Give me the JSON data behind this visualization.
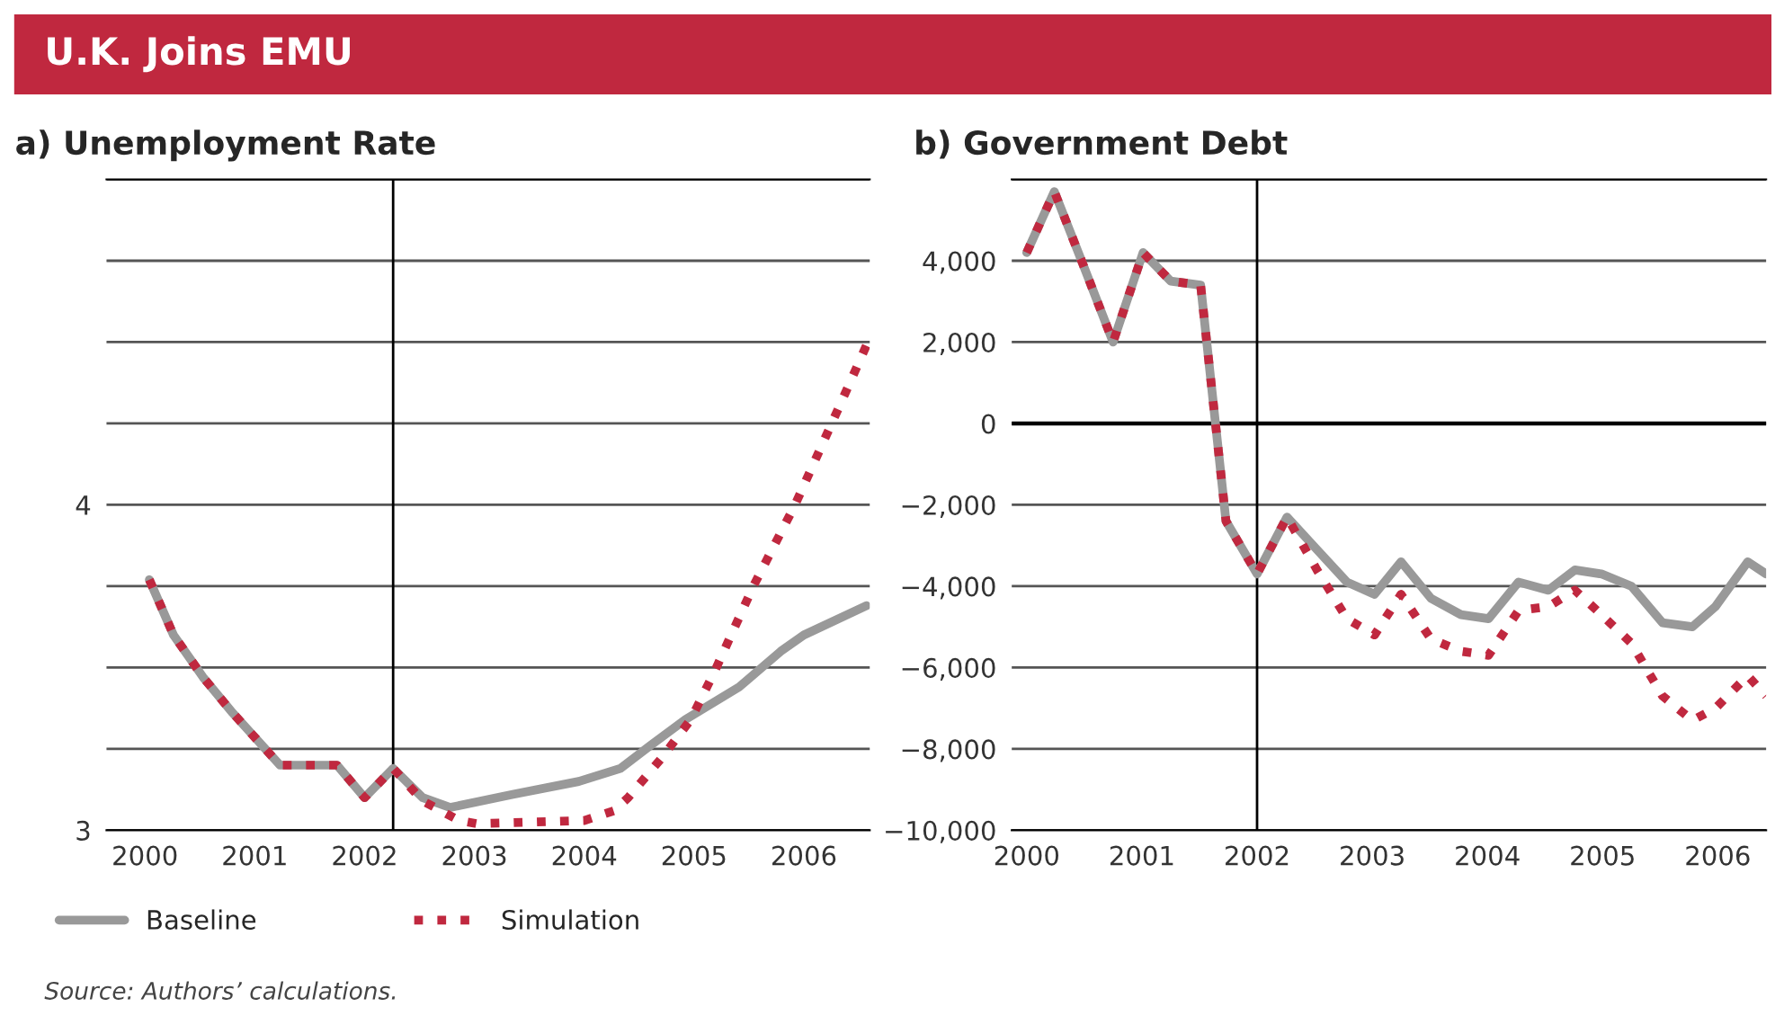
{
  "chart_data": [
    {
      "type": "line",
      "title": "a) Unemployment Rate",
      "xlim": [
        1999.65,
        2006.6
      ],
      "ylim": [
        3,
        5
      ],
      "xticks": [
        2000,
        2001,
        2002,
        2003,
        2004,
        2005,
        2006
      ],
      "yticks": [
        3,
        {
          "value": 3.25,
          "label": null
        },
        {
          "value": 3.5,
          "label": null
        },
        {
          "value": 3.75,
          "label": null
        },
        4,
        {
          "value": 4.25,
          "label": null
        },
        {
          "value": 4.5,
          "label": null
        },
        {
          "value": 4.75,
          "label": null
        },
        {
          "value": 5,
          "label": null
        }
      ],
      "grid": "y",
      "legend": "bottom",
      "ref_lines": [
        {
          "axis": "x",
          "value": 2002.26,
          "color": "#000000"
        }
      ],
      "series": [
        {
          "name": "Baseline",
          "color": "#999999",
          "line_style": "solid",
          "x": [
            2000.04,
            2000.26,
            2000.53,
            2000.8,
            2001.23,
            2001.75,
            2002.0,
            2002.26,
            2002.53,
            2002.78,
            2003.35,
            2003.95,
            2004.33,
            2004.6,
            2004.92,
            2005.41,
            2005.79,
            2006.0,
            2006.57
          ],
          "values": [
            3.77,
            3.6,
            3.47,
            3.36,
            3.2,
            3.2,
            3.1,
            3.19,
            3.1,
            3.07,
            3.11,
            3.15,
            3.19,
            3.26,
            3.34,
            3.44,
            3.55,
            3.6,
            3.69
          ]
        },
        {
          "name": "Simulation",
          "color": "#c0283f",
          "line_style": "dotted",
          "x": [
            2000.04,
            2000.26,
            2000.53,
            2000.8,
            2001.23,
            2001.75,
            2002.0,
            2002.26,
            2002.53,
            2002.86,
            2003.02,
            2004.0,
            2004.27,
            2004.4,
            2004.7,
            2004.97,
            2005.19,
            2005.54,
            2005.92,
            2006.32,
            2006.57
          ],
          "values": [
            3.77,
            3.6,
            3.47,
            3.36,
            3.2,
            3.2,
            3.1,
            3.19,
            3.09,
            3.03,
            3.02,
            3.03,
            3.06,
            3.1,
            3.22,
            3.34,
            3.49,
            3.75,
            4.0,
            4.3,
            4.49
          ]
        }
      ]
    },
    {
      "type": "line",
      "title": "b) Government Debt",
      "xlim": [
        1999.87,
        2006.42
      ],
      "ylim": [
        -10000,
        6000
      ],
      "xticks": [
        2000,
        2001,
        2002,
        2003,
        2004,
        2005,
        2006
      ],
      "yticks": [
        {
          "value": -10000,
          "label": "−10,000"
        },
        {
          "value": -8000,
          "label": "−8,000"
        },
        {
          "value": -6000,
          "label": "−6,000"
        },
        {
          "value": -4000,
          "label": "−4,000"
        },
        {
          "value": -2000,
          "label": "−2,000"
        },
        0,
        {
          "value": 2000,
          "label": "2,000"
        },
        {
          "value": 4000,
          "label": "4,000"
        },
        {
          "value": 6000,
          "label": null
        }
      ],
      "grid": "y",
      "ref_lines": [
        {
          "axis": "x",
          "value": 2002.0,
          "color": "#000000"
        },
        {
          "axis": "y",
          "value": 0,
          "color": "#000000"
        }
      ],
      "series": [
        {
          "color": "#999999",
          "line_style": "solid",
          "x": [
            2000,
            2000.24,
            2000.49,
            2000.75,
            2001.01,
            2001.25,
            2001.51,
            2001.73,
            2002.0,
            2002.26,
            2002.52,
            2002.78,
            2003.02,
            2003.25,
            2003.51,
            2003.77,
            2004.01,
            2004.27,
            2004.53,
            2004.76,
            2004.99,
            2005.25,
            2005.52,
            2005.78,
            2005.98,
            2006.26,
            2006.42
          ],
          "values": [
            4200,
            5700,
            3900,
            2000,
            4200,
            3500,
            3400,
            -2400,
            -3700,
            -2300,
            -3100,
            -3900,
            -4200,
            -3400,
            -4300,
            -4700,
            -4800,
            -3900,
            -4100,
            -3600,
            -3700,
            -4000,
            -4900,
            -5000,
            -4500,
            -3400,
            -3700
          ]
        },
        {
          "color": "#c0283f",
          "line_style": "dotted",
          "x": [
            2000,
            2000.24,
            2000.49,
            2000.75,
            2001.01,
            2001.25,
            2001.51,
            2001.73,
            2002.0,
            2002.26,
            2002.52,
            2002.78,
            2003.02,
            2003.25,
            2003.51,
            2003.77,
            2004.01,
            2004.27,
            2004.53,
            2004.76,
            2004.99,
            2005.25,
            2005.52,
            2005.78,
            2005.98,
            2006.26,
            2006.42
          ],
          "values": [
            4200,
            5700,
            3900,
            2000,
            4200,
            3500,
            3400,
            -2400,
            -3700,
            -2300,
            -3600,
            -4800,
            -5200,
            -4200,
            -5300,
            -5600,
            -5700,
            -4600,
            -4500,
            -4100,
            -4700,
            -5400,
            -6700,
            -7300,
            -7000,
            -6200,
            -6700
          ]
        }
      ]
    },
    {
      "type": "other",
      "title": "U.K. Joins EMU",
      "annotations": [
        "Source: Authors’ calculations."
      ]
    }
  ]
}
